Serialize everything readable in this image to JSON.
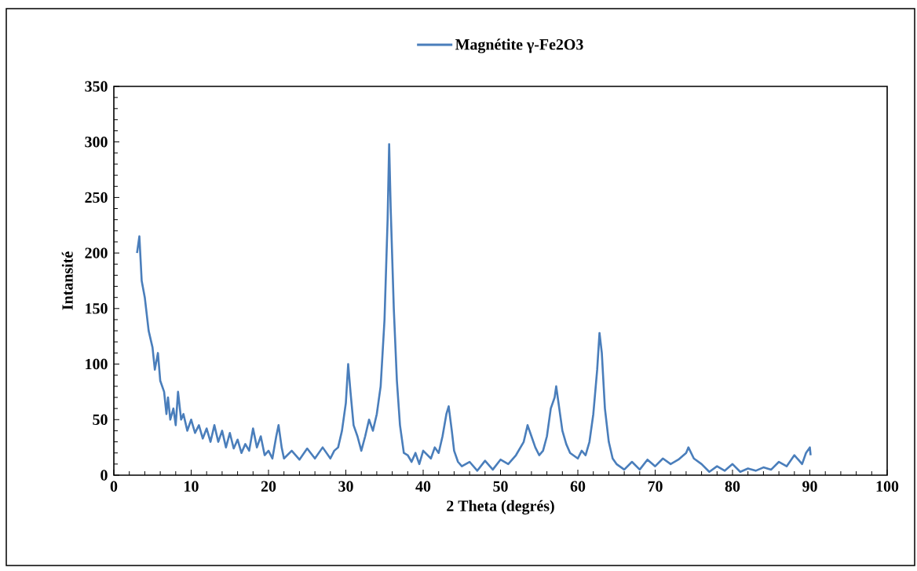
{
  "chart_data": {
    "type": "line",
    "xlabel": "2 Theta (degrés)",
    "ylabel": "Intansité",
    "xlim": [
      0,
      100
    ],
    "ylim": [
      0,
      350
    ],
    "xticks": [
      0,
      10,
      20,
      30,
      40,
      50,
      60,
      70,
      80,
      90,
      100
    ],
    "yticks": [
      0,
      50,
      100,
      150,
      200,
      250,
      300,
      350
    ],
    "legend": "top",
    "marker": "none",
    "line_style": "solid",
    "x": [
      3,
      3.3,
      3.6,
      4,
      4.5,
      5,
      5.3,
      5.7,
      6,
      6.5,
      6.8,
      7,
      7.3,
      7.7,
      8,
      8.3,
      8.7,
      9,
      9.5,
      10,
      10.5,
      11,
      11.5,
      12,
      12.5,
      13,
      13.5,
      14,
      14.5,
      15,
      15.5,
      16,
      16.5,
      17,
      17.5,
      18,
      18.5,
      19,
      19.5,
      20,
      20.5,
      21,
      21.3,
      21.7,
      22,
      23,
      24,
      25,
      26,
      27,
      28,
      28.5,
      29,
      29.5,
      30,
      30.3,
      30.6,
      31,
      31.5,
      32,
      32.5,
      33,
      33.5,
      34,
      34.5,
      35,
      35.4,
      35.6,
      35.8,
      36.2,
      36.6,
      37,
      37.5,
      38,
      38.5,
      39,
      39.5,
      40,
      41,
      41.5,
      42,
      42.5,
      43,
      43.3,
      43.7,
      44,
      44.5,
      45,
      46,
      47,
      48,
      49,
      50,
      51,
      52,
      53,
      53.5,
      54,
      54.5,
      55,
      55.5,
      56,
      56.5,
      57,
      57.2,
      57.6,
      58,
      58.5,
      59,
      60,
      60.5,
      61,
      61.5,
      62,
      62.5,
      62.8,
      63.1,
      63.5,
      64,
      64.5,
      65,
      66,
      67,
      68,
      69,
      70,
      71,
      72,
      73,
      74,
      74.3,
      75,
      76,
      77,
      78,
      79,
      80,
      81,
      82,
      83,
      84,
      85,
      86,
      87,
      88,
      89,
      89.5,
      90,
      90.1
    ],
    "series": [
      {
        "name": "Magnétite γ-Fe2O3",
        "color": "#4a7ebb",
        "values": [
          200,
          215,
          175,
          160,
          130,
          115,
          95,
          110,
          85,
          75,
          55,
          70,
          50,
          60,
          45,
          75,
          50,
          55,
          40,
          50,
          38,
          45,
          33,
          42,
          30,
          45,
          30,
          40,
          25,
          38,
          24,
          32,
          20,
          28,
          22,
          42,
          25,
          35,
          18,
          22,
          15,
          35,
          45,
          25,
          15,
          22,
          14,
          24,
          15,
          25,
          15,
          22,
          25,
          40,
          65,
          100,
          75,
          45,
          35,
          22,
          35,
          50,
          40,
          55,
          80,
          140,
          230,
          298,
          240,
          150,
          85,
          45,
          20,
          18,
          12,
          20,
          10,
          22,
          15,
          25,
          20,
          35,
          55,
          62,
          40,
          22,
          12,
          8,
          12,
          4,
          13,
          5,
          14,
          10,
          18,
          30,
          45,
          35,
          25,
          18,
          22,
          35,
          60,
          70,
          80,
          60,
          40,
          28,
          20,
          15,
          22,
          18,
          30,
          55,
          95,
          128,
          110,
          60,
          30,
          15,
          10,
          5,
          12,
          5,
          14,
          8,
          15,
          10,
          14,
          20,
          25,
          15,
          10,
          3,
          8,
          4,
          10,
          3,
          6,
          4,
          7,
          5,
          12,
          8,
          18,
          10,
          20,
          25,
          18
        ]
      }
    ]
  }
}
